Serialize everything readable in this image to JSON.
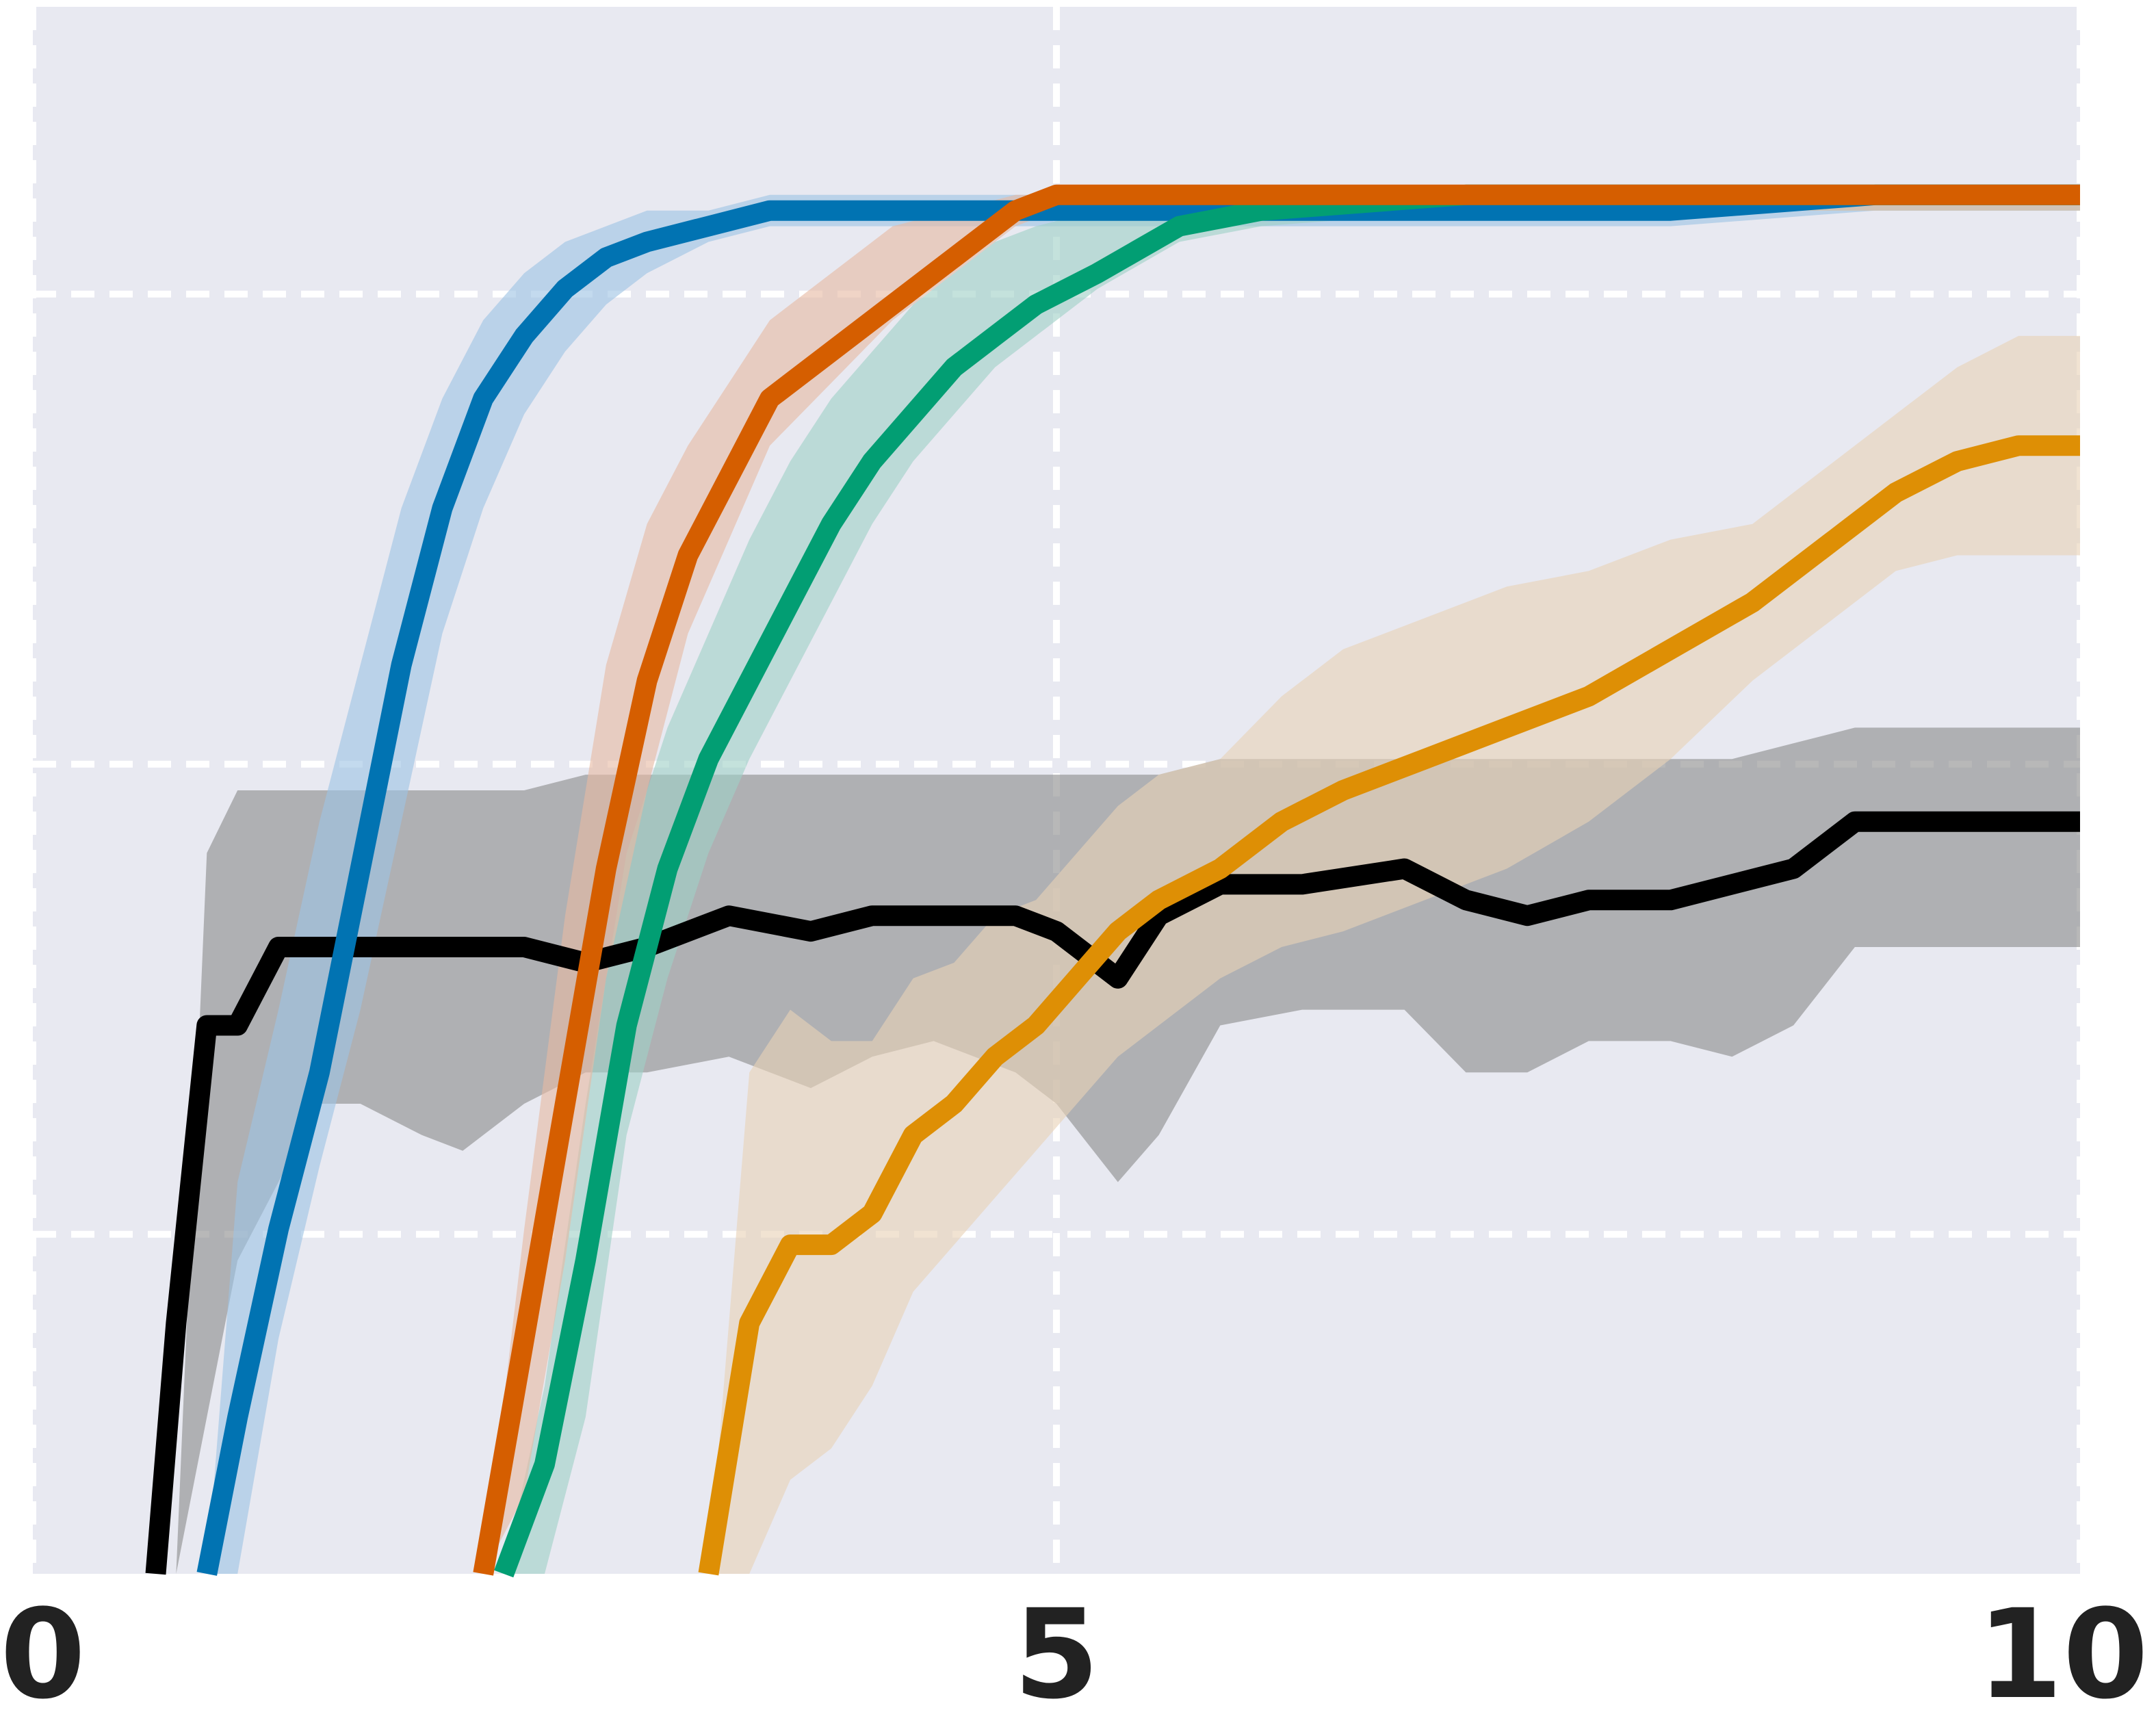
{
  "chart_data": {
    "type": "line",
    "title": "",
    "xlabel": "",
    "ylabel": "",
    "xlim": [
      0,
      10
    ],
    "ylim": [
      0,
      1
    ],
    "x_ticks": [
      0,
      5,
      10
    ],
    "x_tick_labels": [
      "0",
      "5",
      "10"
    ],
    "y_gridlines": [
      0.2167,
      0.5167,
      0.8167
    ],
    "grid": true,
    "grid_style": "dashed",
    "background": "#e8e9f1",
    "series": [
      {
        "color": "#000000",
        "band_color": "#8c8c8c",
        "x": [
          0.6,
          0.7,
          0.85,
          1.0,
          1.2,
          1.4,
          1.6,
          1.9,
          2.1,
          2.4,
          2.7,
          3.0,
          3.4,
          3.8,
          4.1,
          4.4,
          4.8,
          5.0,
          5.3,
          5.5,
          5.8,
          6.2,
          6.7,
          7.0,
          7.3,
          7.6,
          8.0,
          8.3,
          8.6,
          8.9,
          9.3,
          9.7,
          10.0
        ],
        "y": [
          0.0,
          0.16,
          0.35,
          0.35,
          0.4,
          0.4,
          0.4,
          0.4,
          0.4,
          0.4,
          0.39,
          0.4,
          0.42,
          0.41,
          0.42,
          0.42,
          0.42,
          0.41,
          0.38,
          0.42,
          0.44,
          0.44,
          0.45,
          0.43,
          0.42,
          0.43,
          0.43,
          0.44,
          0.45,
          0.48,
          0.48,
          0.48,
          0.48
        ],
        "lower": [
          0.0,
          0.0,
          0.1,
          0.2,
          0.25,
          0.3,
          0.3,
          0.28,
          0.27,
          0.3,
          0.32,
          0.32,
          0.33,
          0.31,
          0.33,
          0.34,
          0.32,
          0.3,
          0.25,
          0.28,
          0.35,
          0.36,
          0.36,
          0.32,
          0.32,
          0.34,
          0.34,
          0.33,
          0.35,
          0.4,
          0.4,
          0.4,
          0.4
        ],
        "upper": [
          0.0,
          0.0,
          0.46,
          0.5,
          0.5,
          0.5,
          0.5,
          0.5,
          0.5,
          0.5,
          0.51,
          0.51,
          0.51,
          0.51,
          0.51,
          0.51,
          0.51,
          0.51,
          0.51,
          0.51,
          0.52,
          0.52,
          0.52,
          0.52,
          0.52,
          0.52,
          0.52,
          0.52,
          0.53,
          0.54,
          0.54,
          0.54,
          0.54
        ]
      },
      {
        "color": "#0173b2",
        "band_color": "#9ec3e3",
        "x": [
          0.85,
          1.0,
          1.2,
          1.4,
          1.6,
          1.8,
          2.0,
          2.2,
          2.4,
          2.6,
          2.8,
          3.0,
          3.3,
          3.6,
          4.0,
          4.5,
          5.0,
          6.0,
          7.0,
          8.0,
          9.0,
          10.0
        ],
        "y": [
          0.0,
          0.1,
          0.22,
          0.32,
          0.45,
          0.58,
          0.68,
          0.75,
          0.79,
          0.82,
          0.84,
          0.85,
          0.86,
          0.87,
          0.87,
          0.87,
          0.87,
          0.87,
          0.87,
          0.87,
          0.88,
          0.88
        ],
        "lower": [
          0.0,
          0.0,
          0.15,
          0.26,
          0.36,
          0.48,
          0.6,
          0.68,
          0.74,
          0.78,
          0.81,
          0.83,
          0.85,
          0.86,
          0.86,
          0.86,
          0.86,
          0.86,
          0.86,
          0.86,
          0.87,
          0.87
        ],
        "upper": [
          0.0,
          0.25,
          0.36,
          0.48,
          0.58,
          0.68,
          0.75,
          0.8,
          0.83,
          0.85,
          0.86,
          0.87,
          0.87,
          0.88,
          0.88,
          0.88,
          0.88,
          0.88,
          0.88,
          0.88,
          0.88,
          0.88
        ]
      },
      {
        "color": "#029e73",
        "band_color": "#a0d1c7",
        "x": [
          2.3,
          2.5,
          2.7,
          2.9,
          3.1,
          3.3,
          3.5,
          3.7,
          3.9,
          4.1,
          4.3,
          4.5,
          4.7,
          4.9,
          5.2,
          5.6,
          6.0,
          7.0,
          8.0,
          9.0,
          10.0
        ],
        "y": [
          0.0,
          0.07,
          0.2,
          0.35,
          0.45,
          0.52,
          0.57,
          0.62,
          0.67,
          0.71,
          0.74,
          0.77,
          0.79,
          0.81,
          0.83,
          0.86,
          0.87,
          0.88,
          0.88,
          0.88,
          0.88
        ],
        "lower": [
          0.0,
          0.0,
          0.1,
          0.28,
          0.38,
          0.46,
          0.52,
          0.57,
          0.62,
          0.67,
          0.71,
          0.74,
          0.77,
          0.79,
          0.82,
          0.85,
          0.86,
          0.87,
          0.87,
          0.87,
          0.87
        ],
        "upper": [
          0.0,
          0.12,
          0.3,
          0.46,
          0.54,
          0.6,
          0.66,
          0.71,
          0.75,
          0.78,
          0.81,
          0.83,
          0.85,
          0.86,
          0.87,
          0.88,
          0.88,
          0.88,
          0.88,
          0.88,
          0.88
        ]
      },
      {
        "color": "#d55e00",
        "band_color": "#e6baa3",
        "x": [
          2.2,
          2.4,
          2.6,
          2.8,
          3.0,
          3.2,
          3.4,
          3.6,
          3.9,
          4.2,
          4.5,
          4.8,
          5.0,
          6.0,
          7.0,
          8.0,
          9.0,
          10.0
        ],
        "y": [
          0.0,
          0.15,
          0.3,
          0.45,
          0.57,
          0.65,
          0.7,
          0.75,
          0.78,
          0.81,
          0.84,
          0.87,
          0.88,
          0.88,
          0.88,
          0.88,
          0.88,
          0.88
        ],
        "lower": [
          0.0,
          0.05,
          0.2,
          0.38,
          0.5,
          0.6,
          0.66,
          0.72,
          0.76,
          0.8,
          0.83,
          0.86,
          0.87,
          0.87,
          0.87,
          0.87,
          0.87,
          0.87
        ],
        "upper": [
          0.0,
          0.22,
          0.42,
          0.58,
          0.67,
          0.72,
          0.76,
          0.8,
          0.83,
          0.86,
          0.87,
          0.88,
          0.88,
          0.88,
          0.88,
          0.88,
          0.88,
          0.88
        ]
      },
      {
        "color": "#de8f05",
        "band_color": "#e8d2b7",
        "x": [
          3.3,
          3.5,
          3.7,
          3.9,
          4.1,
          4.3,
          4.5,
          4.7,
          4.9,
          5.1,
          5.3,
          5.5,
          5.8,
          6.1,
          6.4,
          6.8,
          7.2,
          7.6,
          8.0,
          8.4,
          8.8,
          9.1,
          9.4,
          9.7,
          10.0
        ],
        "y": [
          0.0,
          0.16,
          0.21,
          0.21,
          0.23,
          0.28,
          0.3,
          0.33,
          0.35,
          0.38,
          0.41,
          0.43,
          0.45,
          0.48,
          0.5,
          0.52,
          0.54,
          0.56,
          0.59,
          0.62,
          0.66,
          0.69,
          0.71,
          0.72,
          0.72
        ],
        "lower": [
          0.0,
          0.0,
          0.06,
          0.08,
          0.12,
          0.18,
          0.21,
          0.24,
          0.27,
          0.3,
          0.33,
          0.35,
          0.38,
          0.4,
          0.41,
          0.43,
          0.45,
          0.48,
          0.52,
          0.57,
          0.61,
          0.64,
          0.65,
          0.65,
          0.65
        ]
      }
    ]
  }
}
